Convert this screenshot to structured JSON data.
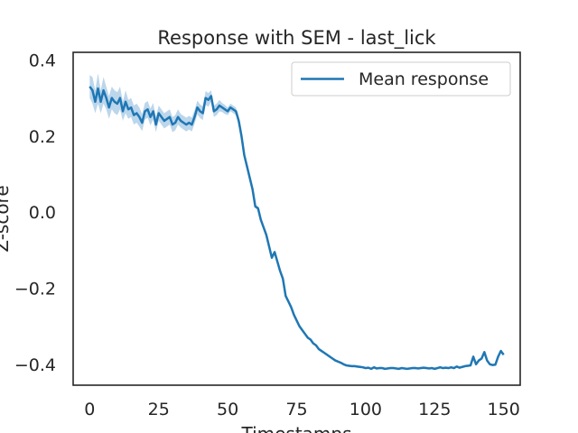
{
  "chart_data": {
    "type": "line",
    "title": "Response with SEM - last_lick",
    "xlabel": "Timestamps",
    "ylabel": "Z-score",
    "xlim": [
      -6,
      156
    ],
    "ylim": [
      -0.455,
      0.42
    ],
    "xticks": [
      0,
      25,
      50,
      75,
      100,
      125,
      150
    ],
    "yticks": [
      -0.4,
      -0.2,
      0.0,
      0.2,
      0.4
    ],
    "xtick_labels": [
      "0",
      "25",
      "50",
      "75",
      "100",
      "125",
      "150"
    ],
    "ytick_labels": [
      "−0.4",
      "−0.2",
      "0.0",
      "0.2",
      "0.4"
    ],
    "grid": false,
    "legend_position": "top-right",
    "colors": {
      "line": "#1f77b4",
      "band": "#a6c8e4",
      "axes": "#262626"
    },
    "series": [
      {
        "name": "Mean response",
        "x": [
          0,
          1,
          2,
          3,
          4,
          5,
          6,
          7,
          8,
          9,
          10,
          11,
          12,
          13,
          14,
          15,
          16,
          17,
          18,
          19,
          20,
          21,
          22,
          23,
          24,
          25,
          26,
          27,
          28,
          29,
          30,
          31,
          32,
          33,
          34,
          35,
          36,
          37,
          38,
          39,
          40,
          41,
          42,
          43,
          44,
          45,
          46,
          47,
          48,
          49,
          50,
          51,
          52,
          53,
          54,
          55,
          56,
          57,
          58,
          59,
          60,
          61,
          62,
          63,
          64,
          65,
          66,
          67,
          68,
          69,
          70,
          71,
          72,
          73,
          74,
          75,
          76,
          77,
          78,
          79,
          80,
          81,
          82,
          83,
          84,
          85,
          86,
          87,
          88,
          89,
          90,
          91,
          92,
          93,
          94,
          95,
          96,
          97,
          98,
          99,
          100,
          101,
          102,
          103,
          104,
          105,
          106,
          107,
          108,
          109,
          110,
          111,
          112,
          113,
          114,
          115,
          116,
          117,
          118,
          119,
          120,
          121,
          122,
          123,
          124,
          125,
          126,
          127,
          128,
          129,
          130,
          131,
          132,
          133,
          134,
          135,
          136,
          137,
          138,
          139,
          140,
          141,
          142,
          143,
          144,
          145,
          146,
          147,
          148,
          149,
          150
        ],
        "y": [
          0.33,
          0.32,
          0.29,
          0.325,
          0.29,
          0.32,
          0.3,
          0.275,
          0.3,
          0.29,
          0.285,
          0.3,
          0.265,
          0.29,
          0.27,
          0.275,
          0.255,
          0.26,
          0.25,
          0.235,
          0.265,
          0.27,
          0.25,
          0.265,
          0.23,
          0.26,
          0.25,
          0.24,
          0.245,
          0.25,
          0.23,
          0.235,
          0.25,
          0.24,
          0.235,
          0.23,
          0.235,
          0.23,
          0.25,
          0.275,
          0.265,
          0.26,
          0.3,
          0.295,
          0.305,
          0.265,
          0.27,
          0.28,
          0.275,
          0.27,
          0.265,
          0.275,
          0.27,
          0.265,
          0.24,
          0.2,
          0.15,
          0.12,
          0.09,
          0.06,
          0.015,
          0.01,
          -0.02,
          -0.04,
          -0.06,
          -0.09,
          -0.12,
          -0.105,
          -0.13,
          -0.155,
          -0.175,
          -0.22,
          -0.235,
          -0.25,
          -0.27,
          -0.285,
          -0.3,
          -0.31,
          -0.32,
          -0.33,
          -0.335,
          -0.345,
          -0.35,
          -0.36,
          -0.365,
          -0.37,
          -0.375,
          -0.38,
          -0.385,
          -0.39,
          -0.393,
          -0.396,
          -0.4,
          -0.403,
          -0.404,
          -0.405,
          -0.405,
          -0.406,
          -0.407,
          -0.408,
          -0.41,
          -0.409,
          -0.412,
          -0.408,
          -0.411,
          -0.41,
          -0.41,
          -0.412,
          -0.411,
          -0.41,
          -0.41,
          -0.411,
          -0.412,
          -0.41,
          -0.411,
          -0.412,
          -0.411,
          -0.41,
          -0.41,
          -0.411,
          -0.41,
          -0.409,
          -0.41,
          -0.411,
          -0.41,
          -0.412,
          -0.41,
          -0.408,
          -0.41,
          -0.409,
          -0.41,
          -0.408,
          -0.41,
          -0.406,
          -0.409,
          -0.407,
          -0.405,
          -0.404,
          -0.403,
          -0.38,
          -0.4,
          -0.39,
          -0.385,
          -0.368,
          -0.39,
          -0.4,
          -0.402,
          -0.401,
          -0.38,
          -0.365,
          -0.375
        ],
        "sem": [
          0.03,
          0.035,
          0.03,
          0.04,
          0.03,
          0.035,
          0.03,
          0.03,
          0.03,
          0.03,
          0.03,
          0.03,
          0.025,
          0.03,
          0.025,
          0.025,
          0.025,
          0.025,
          0.025,
          0.022,
          0.022,
          0.022,
          0.022,
          0.022,
          0.02,
          0.02,
          0.02,
          0.02,
          0.02,
          0.02,
          0.02,
          0.02,
          0.02,
          0.018,
          0.018,
          0.018,
          0.018,
          0.018,
          0.018,
          0.018,
          0.018,
          0.018,
          0.018,
          0.018,
          0.015,
          0.015,
          0.015,
          0.015,
          0.012,
          0.012,
          0.01,
          0.01,
          0.01,
          0.01,
          0.01,
          0.008,
          0.008,
          0.008,
          0.006,
          0.006,
          0.005,
          0.005,
          0.005,
          0.005,
          0.005,
          0.004,
          0.004,
          0.004,
          0.004,
          0.004,
          0.004,
          0.004,
          0.004,
          0.004,
          0.004,
          0.004,
          0.004,
          0.004,
          0.003,
          0.003,
          0.003,
          0.003,
          0.003,
          0.003,
          0.003,
          0.003,
          0.003,
          0.003,
          0.003,
          0.003,
          0.003,
          0.003,
          0.003,
          0.003,
          0.003,
          0.003,
          0.003,
          0.003,
          0.003,
          0.003,
          0.003,
          0.003,
          0.003,
          0.003,
          0.003,
          0.003,
          0.003,
          0.003,
          0.003,
          0.003,
          0.003,
          0.003,
          0.003,
          0.003,
          0.003,
          0.003,
          0.003,
          0.003,
          0.003,
          0.003,
          0.003,
          0.003,
          0.003,
          0.003,
          0.003,
          0.003,
          0.003,
          0.003,
          0.003,
          0.003,
          0.003,
          0.003,
          0.003,
          0.003,
          0.003,
          0.003,
          0.003,
          0.003,
          0.003,
          0.003,
          0.003,
          0.003,
          0.003,
          0.003,
          0.003,
          0.003,
          0.003,
          0.003,
          0.003,
          0.003,
          0.003
        ]
      }
    ]
  }
}
